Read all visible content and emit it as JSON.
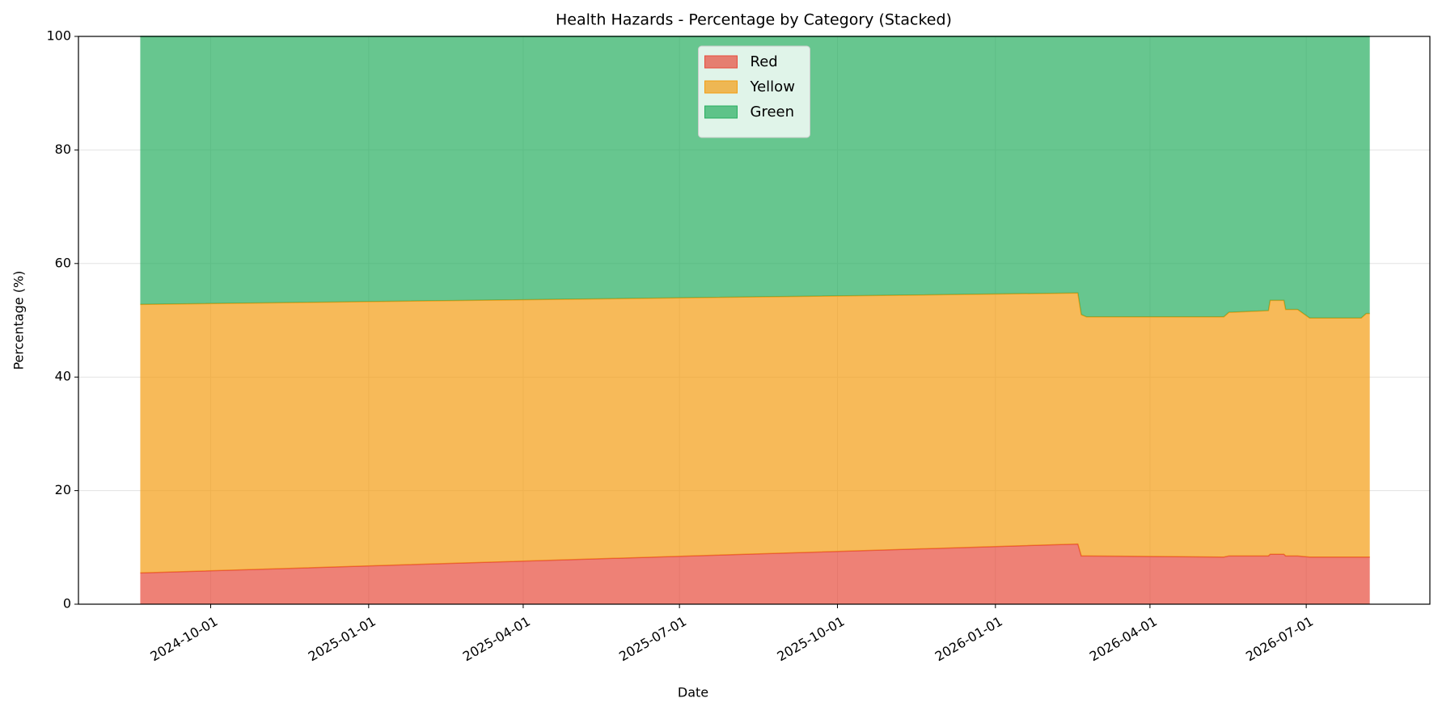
{
  "chart_data": {
    "type": "stacked_area",
    "title": "Health Hazards - Percentage by Category (Stacked)",
    "x_label": "Date",
    "y_label": "Percentage (%)",
    "x": [
      "2024-08-21",
      "2026-02-18",
      "2026-02-20",
      "2026-02-23",
      "2026-05-14",
      "2026-05-17",
      "2026-06-09",
      "2026-06-10",
      "2026-06-18",
      "2026-06-19",
      "2026-06-26",
      "2026-07-03",
      "2026-08-02",
      "2026-08-05",
      "2026-08-07"
    ],
    "series": [
      {
        "name": "Red",
        "color": "#e74c3c",
        "values": [
          5.5,
          10.6,
          8.5,
          8.5,
          8.3,
          8.5,
          8.5,
          8.8,
          8.8,
          8.5,
          8.5,
          8.3,
          8.3,
          8.3,
          8.3
        ]
      },
      {
        "name": "Yellow",
        "color": "#f39c12",
        "values": [
          47.3,
          44.2,
          42.5,
          42.1,
          42.3,
          42.9,
          43.2,
          44.7,
          44.7,
          43.4,
          43.4,
          42.1,
          42.1,
          42.9,
          42.9
        ]
      },
      {
        "name": "Green",
        "color": "#27ae60",
        "values": [
          47.2,
          45.2,
          49.0,
          49.4,
          49.4,
          48.6,
          48.3,
          46.5,
          46.5,
          48.1,
          48.1,
          49.6,
          49.6,
          48.8,
          48.8
        ]
      }
    ],
    "xlim": [
      "2024-07-16",
      "2026-09-11"
    ],
    "xticks": [
      "2024-10-01",
      "2025-01-01",
      "2025-04-01",
      "2025-07-01",
      "2025-10-01",
      "2026-01-01",
      "2026-04-01",
      "2026-07-01"
    ],
    "ylim": [
      0,
      100
    ],
    "yticks": [
      0,
      20,
      40,
      60,
      80,
      100
    ],
    "grid": true,
    "legend": "upper center"
  }
}
